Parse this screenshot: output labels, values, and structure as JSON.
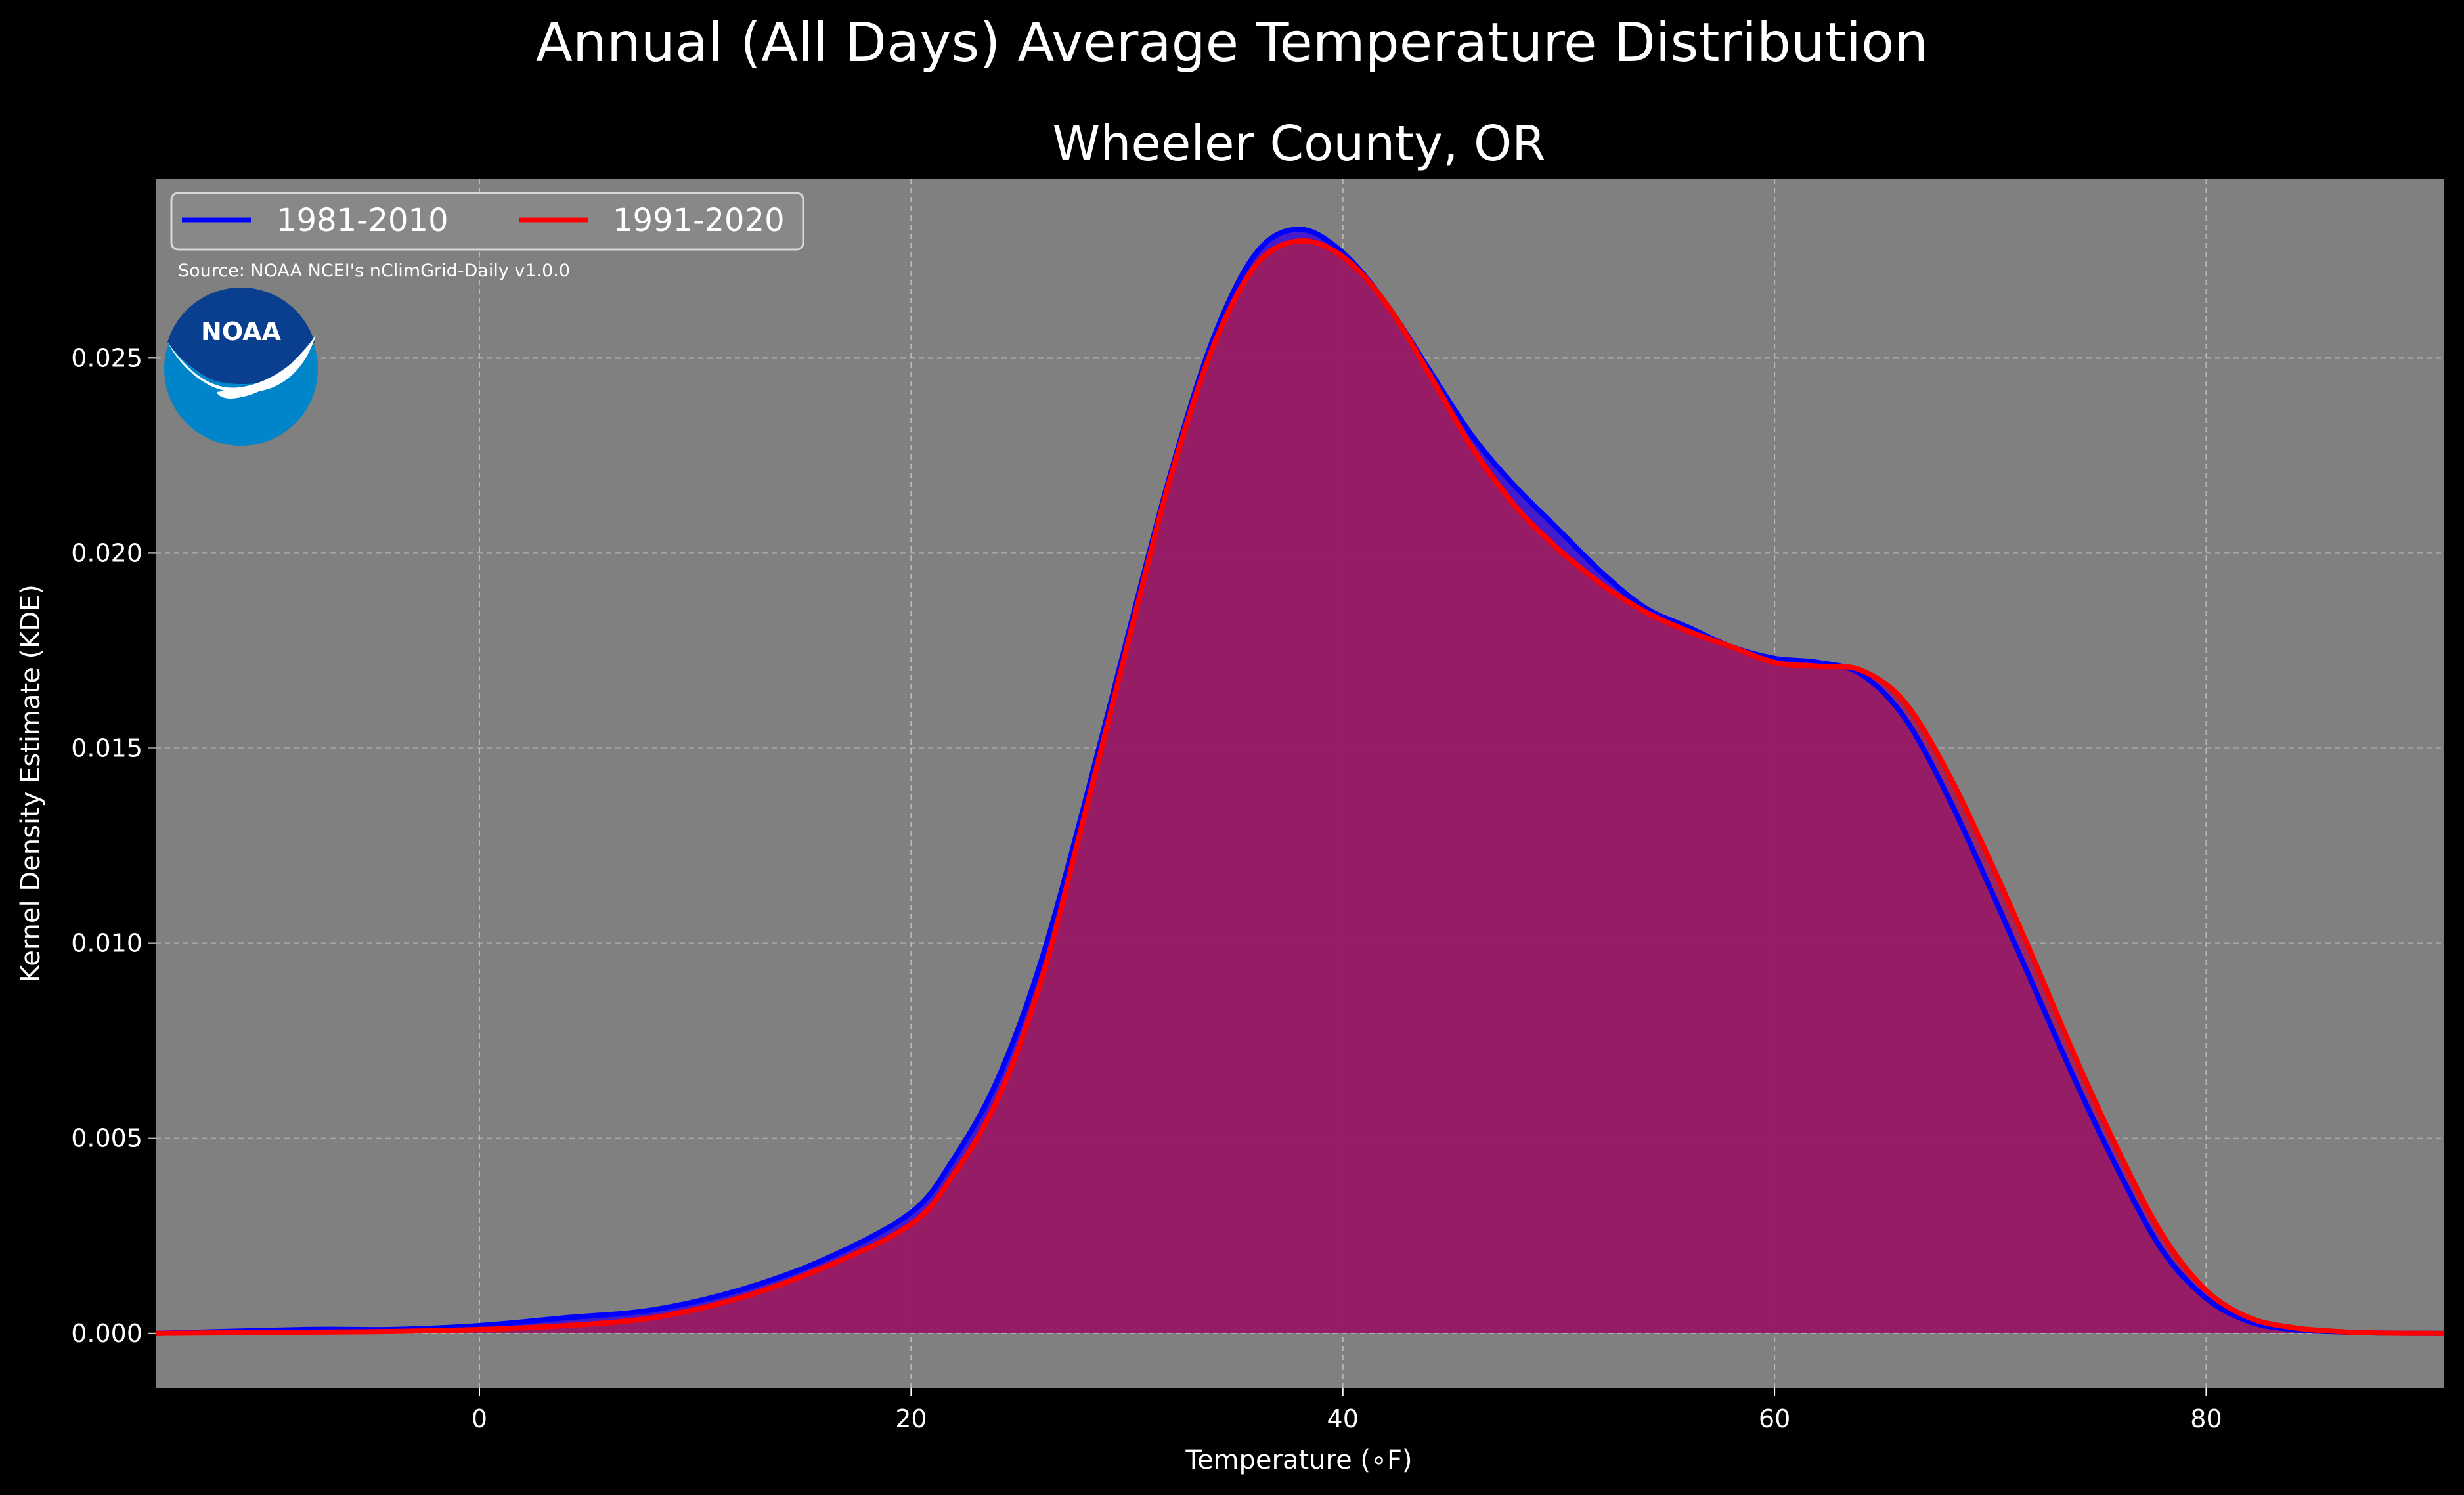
{
  "figure": {
    "suptitle": "Annual (All Days) Average Temperature Distribution",
    "background": "#000000",
    "plot_background": "#808080"
  },
  "source": "Source: NOAA NCEI's nClimGrid-Daily v1.0.0",
  "logo": {
    "text": "NOAA",
    "icon": "noaa-logo"
  },
  "chart_data": {
    "type": "area",
    "title": "Wheeler County, OR",
    "xlabel": "Temperature (∘F)",
    "ylabel": "Kernel Density Estimate (KDE)",
    "xlim": [
      -15,
      91
    ],
    "ylim": [
      -0.0014,
      0.0296
    ],
    "xticks": [
      0,
      20,
      40,
      60,
      80
    ],
    "xtick_labels": [
      "0",
      "20",
      "40",
      "60",
      "80"
    ],
    "yticks": [
      0.0,
      0.005,
      0.01,
      0.015,
      0.02,
      0.025
    ],
    "ytick_labels": [
      "0.000",
      "0.005",
      "0.010",
      "0.015",
      "0.020",
      "0.025"
    ],
    "grid": true,
    "legend_position": "top-left",
    "series": [
      {
        "name": "1981-2010",
        "color": "#0000ff",
        "fill": "#3a0ad8",
        "x": [
          -15,
          -8,
          -4,
          0,
          4,
          8,
          12,
          16,
          20,
          22,
          24,
          26,
          28,
          30,
          32,
          34,
          36,
          38,
          40,
          42,
          44,
          46,
          48,
          50,
          52,
          54,
          56,
          58,
          60,
          62,
          64,
          66,
          68,
          70,
          72,
          74,
          76,
          78,
          80,
          82,
          84,
          86,
          88,
          91
        ],
        "y": [
          0.0,
          0.0001,
          0.0001,
          0.0002,
          0.0004,
          0.0006,
          0.0011,
          0.0019,
          0.0031,
          0.0045,
          0.0065,
          0.0095,
          0.0135,
          0.0178,
          0.022,
          0.0255,
          0.0277,
          0.0283,
          0.0277,
          0.0264,
          0.0247,
          0.023,
          0.0217,
          0.0206,
          0.0195,
          0.0186,
          0.0181,
          0.0176,
          0.0173,
          0.0172,
          0.0169,
          0.0158,
          0.0138,
          0.0114,
          0.0089,
          0.0064,
          0.0041,
          0.0021,
          0.0009,
          0.0003,
          0.0001,
          4e-05,
          1e-05,
          0.0
        ]
      },
      {
        "name": "1991-2020",
        "color": "#ff0000",
        "fill": "#a01e5a",
        "x": [
          -15,
          -8,
          -4,
          0,
          4,
          8,
          12,
          16,
          20,
          22,
          24,
          26,
          28,
          30,
          32,
          34,
          36,
          38,
          40,
          42,
          44,
          46,
          48,
          50,
          52,
          54,
          56,
          58,
          60,
          62,
          64,
          66,
          68,
          70,
          72,
          74,
          76,
          78,
          80,
          82,
          84,
          86,
          88,
          91
        ],
        "y": [
          0.0,
          3e-05,
          5e-05,
          0.0001,
          0.0002,
          0.0004,
          0.0009,
          0.0017,
          0.0028,
          0.0041,
          0.006,
          0.009,
          0.0132,
          0.0176,
          0.0219,
          0.0253,
          0.0274,
          0.028,
          0.0276,
          0.0264,
          0.0246,
          0.0227,
          0.0212,
          0.0201,
          0.0192,
          0.0185,
          0.018,
          0.0176,
          0.0172,
          0.0171,
          0.017,
          0.0162,
          0.0144,
          0.0121,
          0.0096,
          0.007,
          0.0046,
          0.0025,
          0.0011,
          0.0004,
          0.00015,
          5e-05,
          1e-05,
          0.0
        ]
      }
    ]
  }
}
